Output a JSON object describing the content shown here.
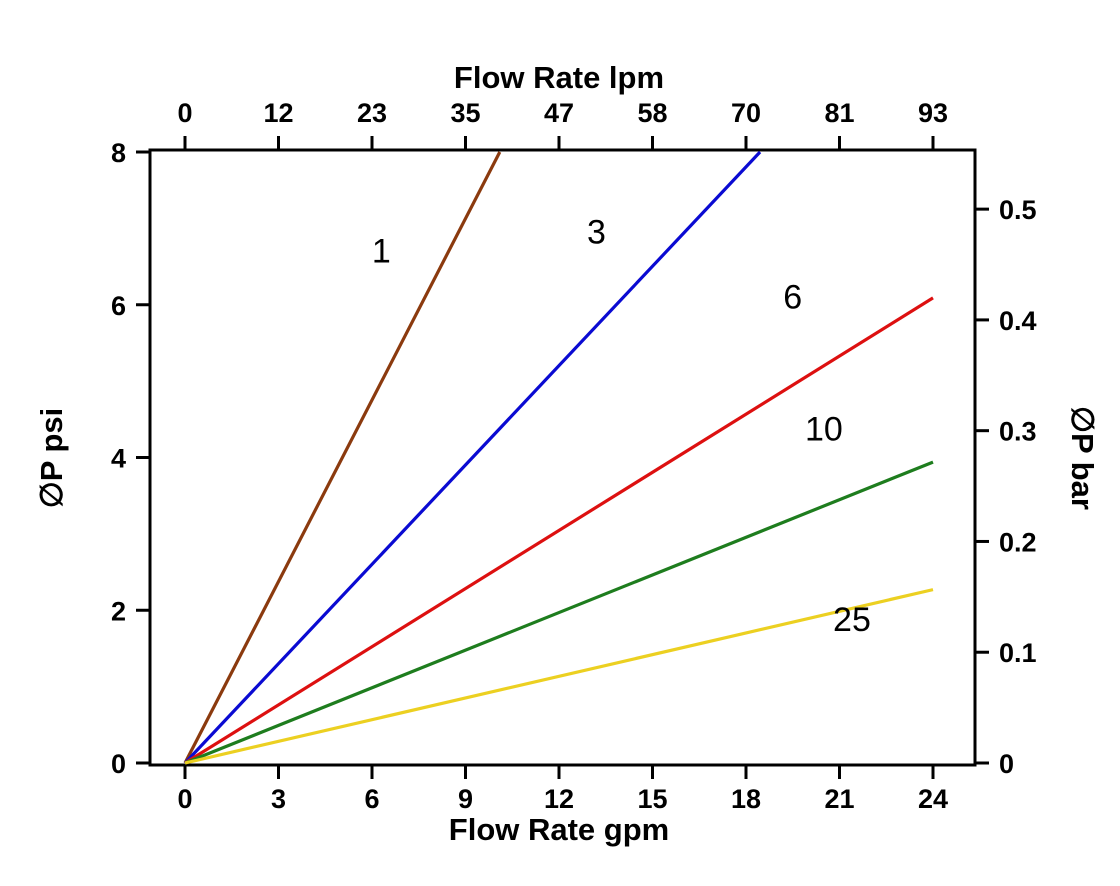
{
  "chart_data": {
    "type": "line",
    "title": "",
    "grid": false,
    "legend": "none (inline curve labels)",
    "bottom_axis": {
      "label": "Flow Rate gpm",
      "ticks": [
        0,
        3,
        6,
        9,
        12,
        15,
        18,
        21,
        24
      ],
      "range": [
        0,
        24
      ]
    },
    "top_axis": {
      "label": "Flow Rate lpm",
      "ticks": [
        "0",
        "12",
        "23",
        "35",
        "47",
        "58",
        "70",
        "81",
        "93"
      ]
    },
    "left_axis": {
      "label": "∅P psi",
      "ticks": [
        0,
        2,
        4,
        6,
        8
      ],
      "range": [
        0,
        8
      ]
    },
    "right_axis": {
      "label": "∅P bar",
      "ticks": [
        0,
        0.1,
        0.2,
        0.3,
        0.4,
        0.5
      ],
      "psi_per_bar": 14.5038
    },
    "series": [
      {
        "name": "1",
        "color": "#8b3a0e",
        "points_gpm_psi": [
          [
            0,
            0
          ],
          [
            10.1,
            8
          ]
        ],
        "label": "1",
        "label_pos": [
          6.3,
          6.55
        ]
      },
      {
        "name": "3",
        "color": "#0a0ad2",
        "points_gpm_psi": [
          [
            0,
            0
          ],
          [
            18.45,
            8
          ]
        ],
        "label": "3",
        "label_pos": [
          13.2,
          6.8
        ]
      },
      {
        "name": "6",
        "color": "#dd1010",
        "points_gpm_psi": [
          [
            0,
            0
          ],
          [
            24,
            6.09
          ]
        ],
        "label": "6",
        "label_pos": [
          19.5,
          5.95
        ]
      },
      {
        "name": "10",
        "color": "#1e7d1e",
        "points_gpm_psi": [
          [
            0,
            0
          ],
          [
            24,
            3.94
          ]
        ],
        "label": "10",
        "label_pos": [
          20.5,
          4.22
        ]
      },
      {
        "name": "25",
        "color": "#ecd021",
        "points_gpm_psi": [
          [
            0,
            0
          ],
          [
            24,
            2.27
          ]
        ],
        "label": "25",
        "label_pos": [
          21.4,
          1.73
        ]
      }
    ]
  }
}
